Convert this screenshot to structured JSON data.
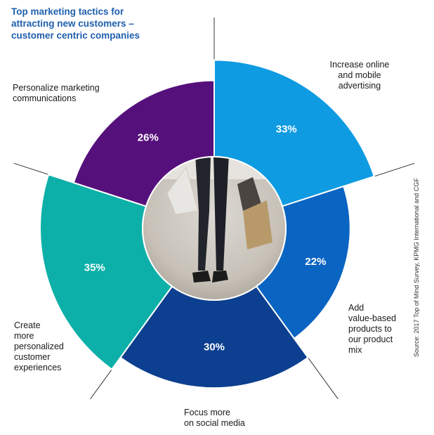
{
  "chart_data": {
    "type": "pie",
    "title": "Top marketing tactics for attracting new customers – customer centric companies",
    "categories": [
      "Increase online and mobile advertising",
      "Add value-based products to our product mix",
      "Focus more on social media",
      "Create more personalized customer experiences",
      "Personalize marketing communications"
    ],
    "values": [
      33,
      22,
      30,
      35,
      26
    ],
    "value_labels": [
      "33%",
      "22%",
      "30%",
      "35%",
      "26%"
    ],
    "colors": [
      "#0e9be2",
      "#0a64c2",
      "#0c3f8f",
      "#0cb0a8",
      "#55107c"
    ],
    "source": "Source: 2017 Top of Mind Survey, KPMG International and CGF"
  },
  "title_lines": [
    "Top marketing tactics for",
    "attracting new customers –",
    "customer centric companies"
  ],
  "labels": {
    "increase_online": [
      "Increase online",
      "and mobile",
      "advertising"
    ],
    "add_value": [
      "Add",
      "value-based",
      "products to",
      "our product",
      "mix"
    ],
    "social_media": [
      "Focus more",
      "on social media"
    ],
    "personalized_exp": [
      "Create",
      "more",
      "personalized",
      "customer",
      "experiences"
    ],
    "personalize_mkt": [
      "Personalize marketing",
      "communications"
    ]
  },
  "center_image": "shopper-with-bags-photo"
}
